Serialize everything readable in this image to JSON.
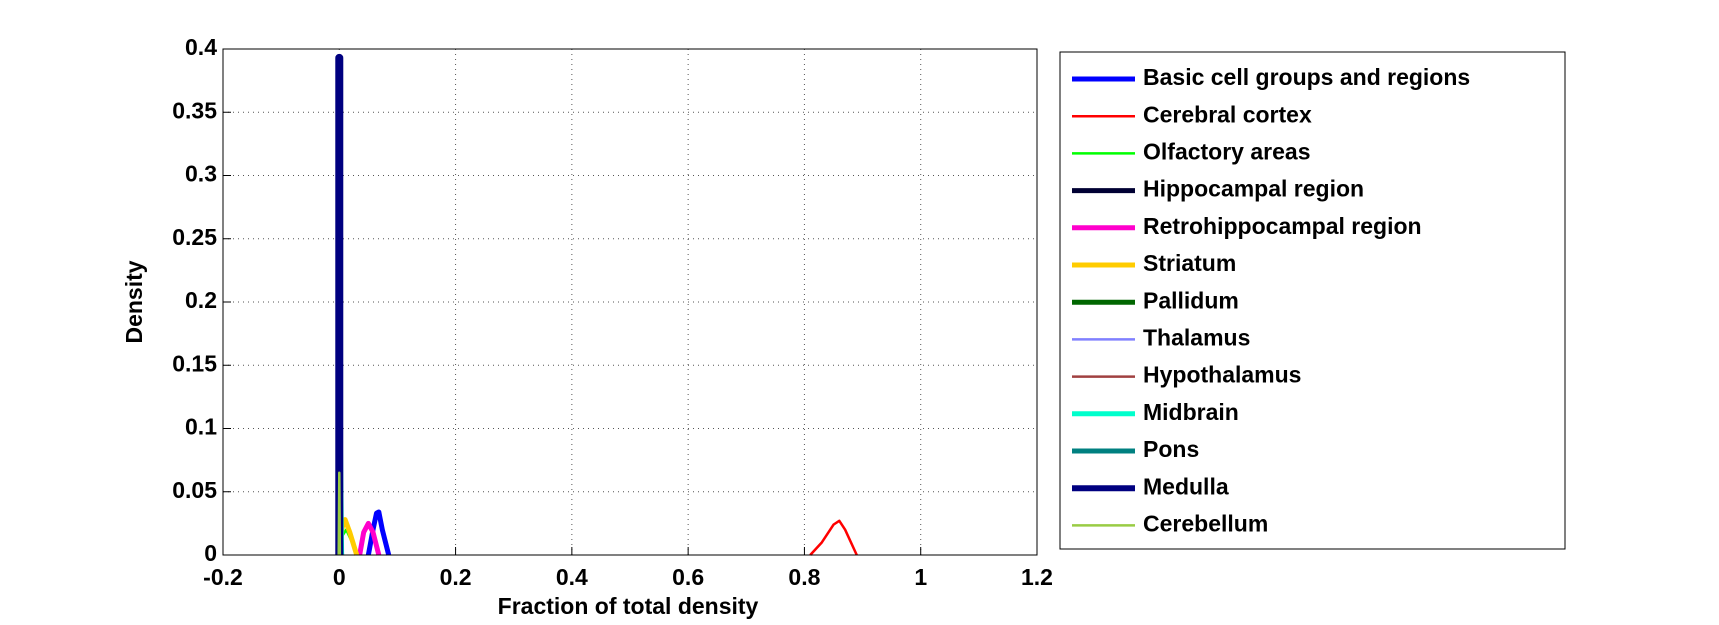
{
  "chart_data": {
    "type": "line",
    "xlabel": "Fraction of total density",
    "ylabel": "Density",
    "xlim": [
      -0.2,
      1.2
    ],
    "xticks": [
      -0.2,
      0,
      0.2,
      0.4,
      0.6,
      0.8,
      1,
      1.2
    ],
    "ylim": [
      0,
      0.4
    ],
    "yticks": [
      0,
      0.05,
      0.1,
      0.15,
      0.2,
      0.25,
      0.3,
      0.35,
      0.4
    ],
    "grid": true,
    "legend": "outside-right",
    "series": [
      {
        "name": "Basic cell groups and regions",
        "color": "#0000ff",
        "linewidth": 5,
        "x": [
          0.05,
          0.058,
          0.064,
          0.068,
          0.074,
          0.085
        ],
        "values": [
          0,
          0.02,
          0.033,
          0.034,
          0.02,
          0
        ]
      },
      {
        "name": "Cerebral cortex",
        "color": "#ff0000",
        "linewidth": 2.5,
        "x": [
          0.81,
          0.83,
          0.85,
          0.86,
          0.87,
          0.89
        ],
        "values": [
          0,
          0.01,
          0.024,
          0.027,
          0.02,
          0
        ]
      },
      {
        "name": "Olfactory areas",
        "color": "#00ff00",
        "linewidth": 2.5,
        "x": [
          0.0,
          0.005,
          0.012,
          0.02,
          0.03
        ],
        "values": [
          0,
          0.015,
          0.02,
          0.012,
          0
        ]
      },
      {
        "name": "Hippocampal region",
        "color": "#000033",
        "linewidth": 5,
        "x": [
          -0.002,
          0.0,
          0.002
        ],
        "values": [
          0,
          0.06,
          0
        ]
      },
      {
        "name": "Retrohippocampal region",
        "color": "#ff00cc",
        "linewidth": 5,
        "x": [
          0.035,
          0.042,
          0.05,
          0.058,
          0.068
        ],
        "values": [
          0,
          0.018,
          0.025,
          0.018,
          0
        ]
      },
      {
        "name": "Striatum",
        "color": "#ffcc00",
        "linewidth": 5,
        "x": [
          0.0,
          0.005,
          0.01,
          0.018,
          0.03
        ],
        "values": [
          0,
          0.022,
          0.028,
          0.018,
          0
        ]
      },
      {
        "name": "Pallidum",
        "color": "#006600",
        "linewidth": 5,
        "x": [
          -0.002,
          0.001,
          0.004
        ],
        "values": [
          0,
          0.03,
          0
        ]
      },
      {
        "name": "Thalamus",
        "color": "#8080ff",
        "linewidth": 2.5,
        "x": [
          -0.002,
          0.001,
          0.004
        ],
        "values": [
          0,
          0.02,
          0
        ]
      },
      {
        "name": "Hypothalamus",
        "color": "#a04040",
        "linewidth": 2.5,
        "x": [
          -0.002,
          0.001,
          0.004
        ],
        "values": [
          0,
          0.015,
          0
        ]
      },
      {
        "name": "Midbrain",
        "color": "#00ffcc",
        "linewidth": 5,
        "x": [
          0.0,
          0.002,
          0.004
        ],
        "values": [
          0,
          0.088,
          0
        ]
      },
      {
        "name": "Pons",
        "color": "#008080",
        "linewidth": 5,
        "x": [
          -0.001,
          0.001,
          0.003
        ],
        "values": [
          0,
          0.04,
          0
        ]
      },
      {
        "name": "Medulla",
        "color": "#000080",
        "linewidth": 8,
        "x": [
          0.0,
          0.0,
          0.0
        ],
        "values": [
          0,
          0.393,
          0
        ]
      },
      {
        "name": "Cerebellum",
        "color": "#99cc44",
        "linewidth": 2.5,
        "x": [
          -0.001,
          0.0,
          0.001
        ],
        "values": [
          0,
          0.065,
          0
        ]
      }
    ]
  }
}
